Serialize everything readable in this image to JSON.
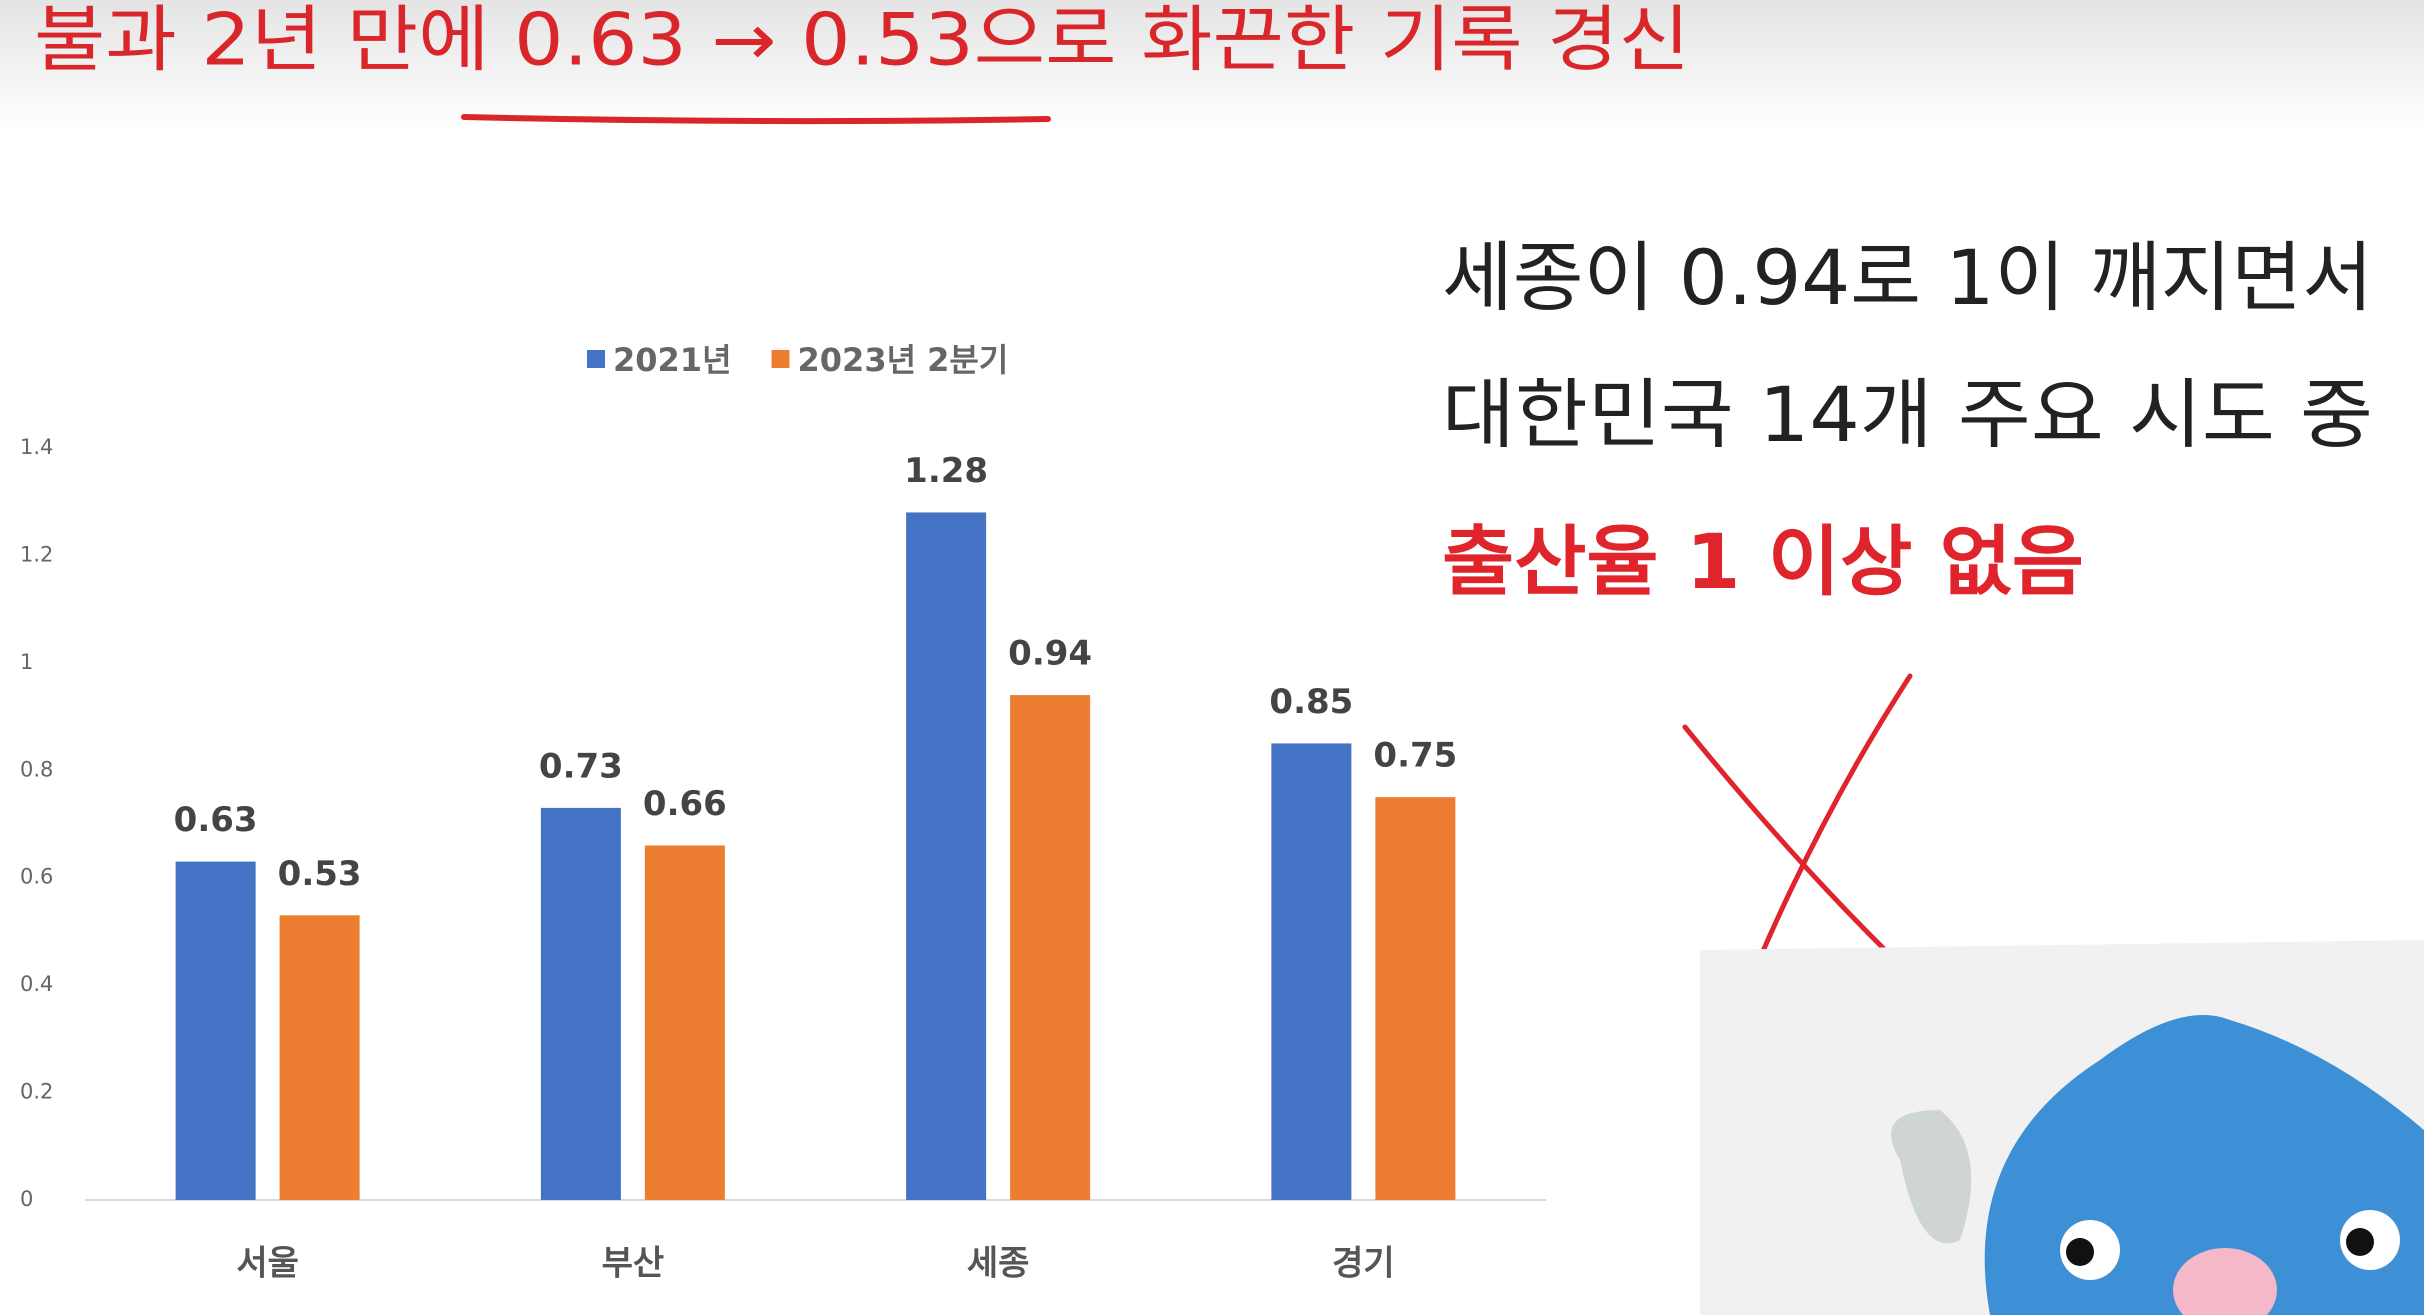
{
  "headline": "불과 2년 만에 0.63 → 0.53으로 화끈한 기록 경신",
  "notes": [
    "세종이 0.94로 1이 깨지면서",
    "대한민국 14개 주요 시도 중",
    "출산율 1 이상 없음"
  ],
  "chart_data": {
    "type": "bar",
    "categories": [
      "서울",
      "부산",
      "세종",
      "경기"
    ],
    "series": [
      {
        "name": "2021년",
        "color": "#4472c4",
        "values": [
          0.63,
          0.73,
          1.28,
          0.85
        ]
      },
      {
        "name": "2023년 2분기",
        "color": "#ed7d31",
        "values": [
          0.53,
          0.66,
          0.94,
          0.75
        ]
      }
    ],
    "ylim": [
      0,
      1.4
    ],
    "yticks": [
      0,
      0.2,
      0.4,
      0.6,
      0.8,
      1,
      1.2,
      1.4
    ],
    "grid": false,
    "legend": "top"
  }
}
